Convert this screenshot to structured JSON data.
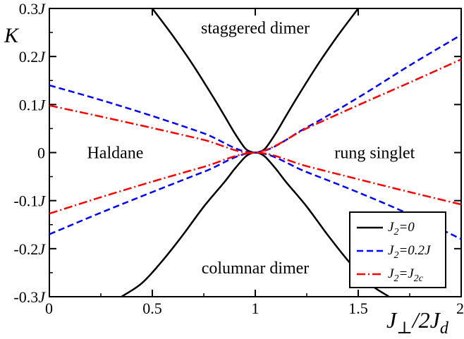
{
  "chart_data": {
    "type": "line",
    "xlim": [
      0,
      2
    ],
    "ylim": [
      -0.3,
      0.3
    ],
    "x_ticks": [
      {
        "value": 0,
        "label": "0"
      },
      {
        "value": 0.5,
        "label": "0.5"
      },
      {
        "value": 1,
        "label": "1"
      },
      {
        "value": 1.5,
        "label": "1.5"
      },
      {
        "value": 2,
        "label": "2"
      }
    ],
    "y_ticks": [
      {
        "value": 0.3,
        "label": "0.3",
        "unit": "J"
      },
      {
        "value": 0.2,
        "label": "0.2",
        "unit": "J"
      },
      {
        "value": 0.1,
        "label": "0.1",
        "unit": "J"
      },
      {
        "value": 0,
        "label": "0",
        "unit": ""
      },
      {
        "value": -0.1,
        "label": "-0.1",
        "unit": "J"
      },
      {
        "value": -0.2,
        "label": "-0.2",
        "unit": "J"
      },
      {
        "value": -0.3,
        "label": "-0.3",
        "unit": "J"
      }
    ],
    "xlabel": {
      "main": "J",
      "sub1": "⊥",
      "mid": "/2J",
      "sub2": "d"
    },
    "ylabel": "K",
    "grid": false,
    "legend_position": "bottom-right",
    "regions": [
      {
        "name": "staggered-dimer",
        "label": "staggered dimer",
        "x": 1.0,
        "y": 0.26
      },
      {
        "name": "haldane",
        "label": "Haldane",
        "x": 0.32,
        "y": 0.0
      },
      {
        "name": "rung-singlet",
        "label": "rung singlet",
        "x": 1.58,
        "y": 0.0
      },
      {
        "name": "columnar-dimer",
        "label": "columnar dimer",
        "x": 1.0,
        "y": -0.24
      }
    ],
    "series": [
      {
        "name": "J2=0",
        "legend": {
          "pre": "J",
          "sub": "2",
          "post": "=0",
          "sub2": ""
        },
        "color": "#000000",
        "dash": "solid",
        "curves": [
          {
            "x": [
              0.5,
              0.6,
              0.7,
              0.8,
              0.85,
              0.9,
              0.95,
              0.98,
              1.0
            ],
            "y": [
              0.3,
              0.2429,
              0.1807,
              0.1125,
              0.0767,
              0.0405,
              0.0092,
              0.0016,
              0.0
            ]
          },
          {
            "x": [
              1.0,
              1.02,
              1.05,
              1.1,
              1.15,
              1.2,
              1.3,
              1.4,
              1.5
            ],
            "y": [
              0.0,
              0.0016,
              0.0092,
              0.0405,
              0.0767,
              0.1125,
              0.1807,
              0.2429,
              0.3
            ]
          },
          {
            "x": [
              0.35,
              0.45,
              0.55,
              0.65,
              0.75,
              0.85,
              0.9,
              0.95,
              0.98,
              1.0
            ],
            "y": [
              -0.3,
              -0.2716,
              -0.2247,
              -0.1706,
              -0.1125,
              -0.0615,
              -0.0339,
              -0.0095,
              -0.0014,
              0.0
            ]
          },
          {
            "x": [
              1.0,
              1.02,
              1.05,
              1.1,
              1.15,
              1.25,
              1.35,
              1.45,
              1.55,
              1.65
            ],
            "y": [
              0.0,
              -0.0014,
              -0.0095,
              -0.0339,
              -0.0615,
              -0.1125,
              -0.1706,
              -0.2247,
              -0.2716,
              -0.3
            ]
          }
        ]
      },
      {
        "name": "J2=0.2J",
        "legend": {
          "pre": "J",
          "sub": "2",
          "post": "=0.2J",
          "sub2": ""
        },
        "color": "#0000ff",
        "dash": "dashed",
        "curves": [
          {
            "x": [
              0,
              0.25,
              0.5,
              0.75,
              1.0,
              1.25,
              1.5,
              1.75,
              2.0
            ],
            "y": [
              0.14,
              0.1094,
              0.0761,
              0.04,
              0.0,
              0.0525,
              0.1145,
              0.1814,
              0.245
            ]
          },
          {
            "x": [
              0,
              0.25,
              0.5,
              0.75,
              1.0,
              1.25,
              1.5,
              1.75,
              2.0
            ],
            "y": [
              -0.17,
              -0.1251,
              -0.0822,
              -0.04,
              0.0,
              -0.0407,
              -0.0829,
              -0.1287,
              -0.18
            ]
          }
        ]
      },
      {
        "name": "J2=J2c",
        "legend": {
          "pre": "J",
          "sub": "2",
          "post": "=J",
          "sub2": "2c"
        },
        "color": "#ff0000",
        "dash": "dashdot",
        "curves": [
          {
            "x": [
              0,
              0.25,
              0.5,
              0.75,
              1.0,
              1.25,
              1.5,
              1.75,
              2.0
            ],
            "y": [
              0.098,
              0.0749,
              0.0512,
              0.0264,
              0.0,
              0.0504,
              0.0988,
              0.1459,
              0.194
            ]
          },
          {
            "x": [
              0,
              0.25,
              0.5,
              0.75,
              1.0,
              1.25,
              1.5,
              1.75,
              2.0
            ],
            "y": [
              -0.127,
              -0.0929,
              -0.0605,
              -0.0296,
              0.0,
              -0.0283,
              -0.0555,
              -0.0822,
              -0.108
            ]
          }
        ]
      }
    ]
  }
}
